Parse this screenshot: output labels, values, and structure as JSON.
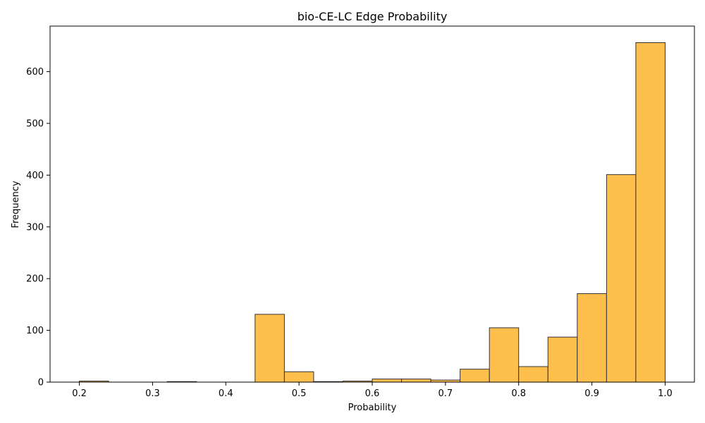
{
  "chart_data": {
    "type": "bar",
    "title": "bio-CE-LC Edge Probability",
    "xlabel": "Probability",
    "ylabel": "Frequency",
    "bin_edges": [
      0.2,
      0.24,
      0.28,
      0.32,
      0.36,
      0.4,
      0.44,
      0.48,
      0.52,
      0.56,
      0.6,
      0.64,
      0.68,
      0.72,
      0.76,
      0.8,
      0.84,
      0.88,
      0.92,
      0.96,
      1.0
    ],
    "values": [
      2,
      0,
      0,
      1,
      0,
      0,
      131,
      20,
      1,
      2,
      6,
      6,
      4,
      25,
      105,
      30,
      87,
      171,
      401,
      656
    ],
    "xlim": [
      0.16,
      1.04
    ],
    "ylim": [
      0,
      688
    ],
    "xticks": [
      0.2,
      0.3,
      0.4,
      0.5,
      0.6,
      0.7,
      0.8,
      0.9,
      1.0
    ],
    "xtick_labels": [
      "0.2",
      "0.3",
      "0.4",
      "0.5",
      "0.6",
      "0.7",
      "0.8",
      "0.9",
      "1.0"
    ],
    "yticks": [
      0,
      100,
      200,
      300,
      400,
      500,
      600
    ],
    "ytick_labels": [
      "0",
      "100",
      "200",
      "300",
      "400",
      "500",
      "600"
    ],
    "bar_color": "#FFBF4D",
    "edge_color": "#333333",
    "grid": false
  }
}
